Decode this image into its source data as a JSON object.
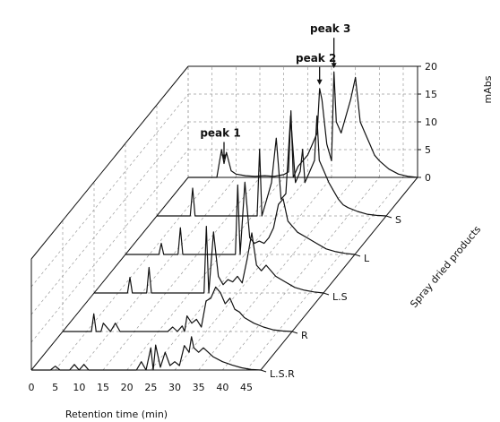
{
  "chart_data": {
    "type": "line",
    "subtype": "3d-waterfall",
    "xlabel": "Retention time (min)",
    "xticks": [
      "0",
      "5",
      "10",
      "15",
      "20",
      "25",
      "30",
      "35",
      "40",
      "45"
    ],
    "xlim": [
      0,
      48
    ],
    "ylabel": "mAbs",
    "yticks": [
      "0",
      "5",
      "10",
      "15",
      "20"
    ],
    "ylim": [
      0,
      20
    ],
    "zlabel": "Spray dried products",
    "series": [
      {
        "name": "L.S.R",
        "x": [
          0,
          4,
          5,
          6,
          8,
          9,
          10,
          11,
          12,
          22,
          23,
          24,
          25,
          25.5,
          26,
          27,
          28,
          29,
          30,
          31,
          32,
          33,
          33.5,
          34,
          35,
          36,
          38,
          40,
          42,
          44,
          46,
          48
        ],
        "values": [
          0,
          0,
          0.7,
          0,
          0,
          1,
          0,
          1,
          0,
          0,
          1.5,
          0,
          4,
          0,
          4.5,
          0.5,
          3.2,
          0.8,
          1.5,
          0.8,
          4.4,
          3.2,
          6,
          4,
          3.2,
          4,
          2.4,
          1.5,
          0.9,
          0.4,
          0.1,
          0
        ]
      },
      {
        "name": "R",
        "x": [
          0,
          6,
          6.5,
          7,
          8,
          8.5,
          10,
          11,
          12,
          20,
          22,
          23,
          24,
          25,
          25.5,
          26,
          27,
          28,
          29,
          30,
          31,
          32,
          33,
          34,
          35,
          36,
          37,
          38,
          40,
          42,
          44,
          46,
          48
        ],
        "values": [
          0,
          0,
          3.2,
          0,
          0,
          1.5,
          0,
          1.5,
          0,
          0,
          0,
          0.8,
          0,
          1,
          0,
          2.8,
          1.5,
          2.2,
          0.8,
          5.5,
          6,
          8,
          7,
          5,
          6,
          4,
          3.5,
          2.5,
          1.5,
          0.8,
          0.3,
          0.1,
          0
        ]
      },
      {
        "name": "L.S",
        "x": [
          0,
          6,
          7,
          7.5,
          8,
          10,
          11,
          11.5,
          12,
          20,
          22,
          23,
          23.5,
          24,
          25,
          26,
          27,
          28,
          29,
          30,
          31,
          32,
          33,
          34,
          35,
          36,
          38,
          40,
          42,
          44,
          46,
          48
        ],
        "values": [
          0,
          0,
          0,
          2.8,
          0,
          0,
          0,
          4.6,
          0,
          0,
          0,
          0,
          12,
          0,
          11,
          3,
          1.5,
          2.4,
          2,
          3,
          1.8,
          6,
          10.8,
          5,
          4,
          5,
          3,
          2,
          1,
          0.5,
          0.2,
          0
        ]
      },
      {
        "name": "L",
        "x": [
          0,
          6,
          7,
          7.5,
          8,
          10,
          11,
          11.5,
          12,
          20,
          22,
          23,
          23.5,
          24,
          25,
          26,
          27,
          28,
          29,
          30,
          31,
          32,
          33,
          34,
          35,
          36,
          38,
          40,
          42,
          44,
          46,
          48
        ],
        "values": [
          0,
          0,
          0,
          2,
          0,
          0,
          0,
          4.8,
          0,
          0,
          0,
          0,
          12.5,
          0,
          13,
          3,
          2,
          2.4,
          2,
          3,
          4.8,
          9,
          10,
          6,
          5,
          4,
          3,
          2,
          1,
          0.5,
          0.2,
          0
        ]
      },
      {
        "name": "S",
        "x": [
          0,
          6,
          7,
          7.5,
          8,
          20,
          21,
          21.5,
          22,
          23,
          24,
          25,
          26,
          27,
          28,
          29,
          30,
          30.5,
          31,
          32,
          33,
          33.5,
          34,
          35,
          36,
          37,
          38,
          39,
          40,
          42,
          44,
          46,
          48
        ],
        "values": [
          0,
          0,
          0,
          5,
          0,
          0,
          0,
          12,
          0,
          3,
          6,
          14,
          3,
          4,
          18,
          6,
          8,
          12,
          6,
          8,
          10,
          18,
          10,
          8,
          6,
          4.5,
          3,
          2,
          1.5,
          0.8,
          0.3,
          0.1,
          0
        ]
      },
      {
        "name": "",
        "x": [
          0,
          6,
          6.5,
          7,
          7.5,
          8,
          9,
          10,
          12,
          14,
          16,
          18,
          20,
          21,
          21.5,
          22,
          23,
          24,
          25,
          26,
          27,
          27.5,
          28,
          29,
          30,
          30.5,
          31,
          32,
          33,
          34,
          35,
          36,
          37,
          38,
          39,
          40,
          42,
          44,
          46,
          48
        ],
        "values": [
          0,
          0,
          2.6,
          5,
          2.5,
          4.5,
          1.2,
          0.6,
          0.3,
          0.2,
          0.3,
          0.2,
          0.5,
          1,
          12,
          0,
          2,
          3,
          4,
          6,
          8,
          16,
          14,
          6,
          3,
          19,
          10,
          8,
          11,
          14,
          18,
          10,
          8,
          6,
          4,
          3,
          1.5,
          0.6,
          0.2,
          0
        ]
      }
    ],
    "annotations": [
      {
        "label": "peak 1",
        "x": 7.5,
        "series": ""
      },
      {
        "label": "peak 2",
        "x": 27.5,
        "series": ""
      },
      {
        "label": "peak 3",
        "x": 30.5,
        "series": ""
      }
    ],
    "z_categories": [
      "L.S.R",
      "R",
      "L.S",
      "L",
      "S"
    ],
    "grid": true
  }
}
